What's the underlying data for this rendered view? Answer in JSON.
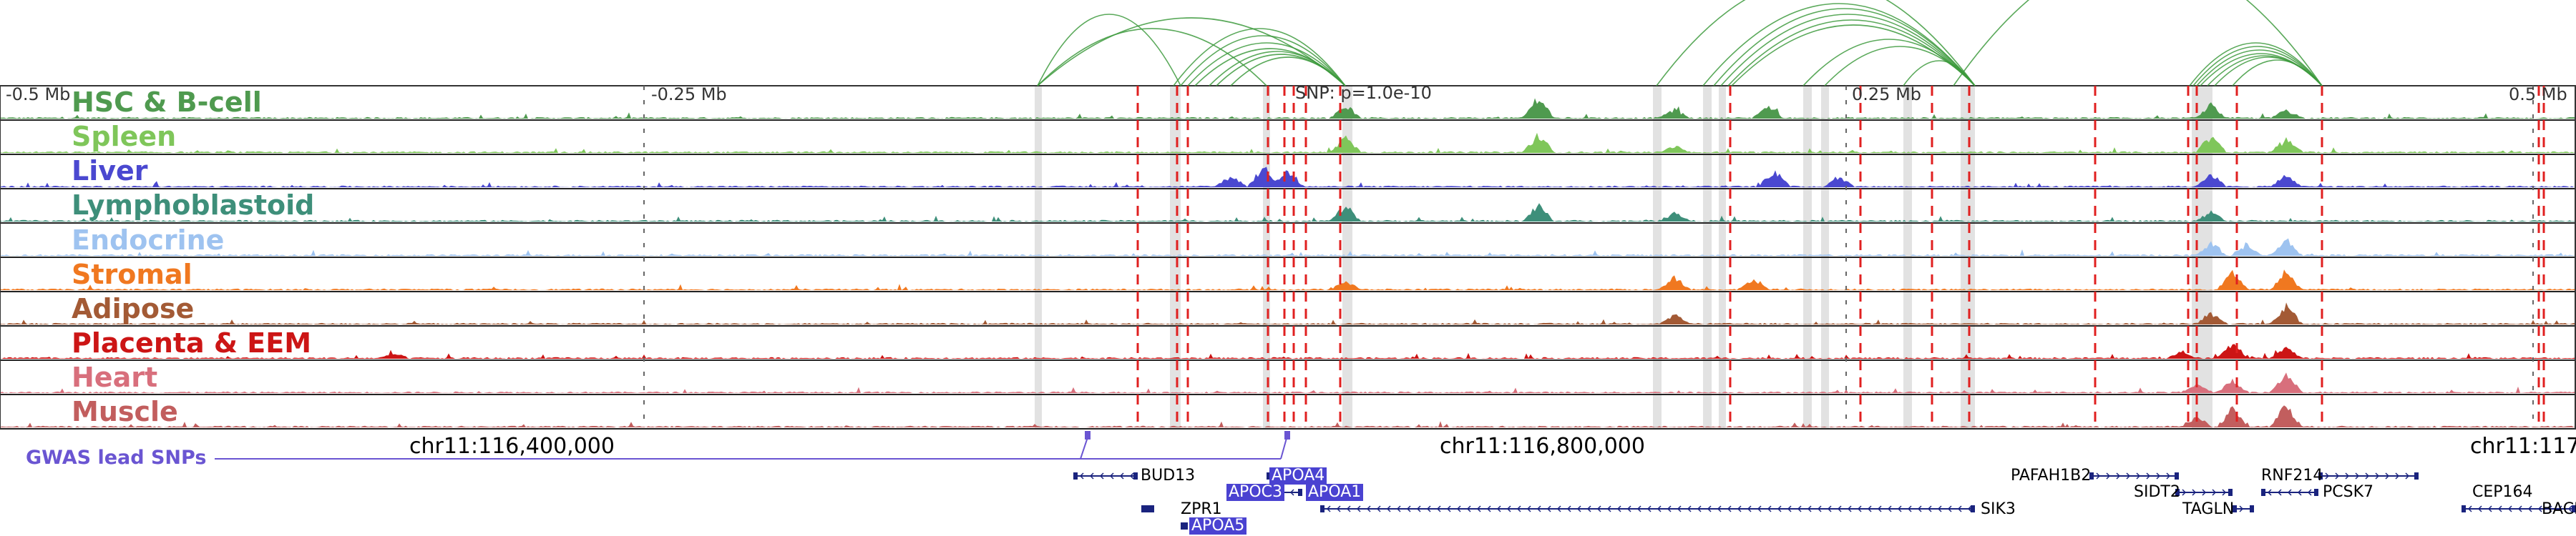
{
  "scale": {
    "left_label": "-0.5 Mb",
    "mid_left_label": "-0.25 Mb",
    "mid_right_label": "0.25 Mb",
    "right_label": "0.5 Mb",
    "snp_label": "SNP: p=1.0e-10"
  },
  "tracks": [
    {
      "name": "HSC & B-cell",
      "color": "#4f9a4f"
    },
    {
      "name": "Spleen",
      "color": "#7fc65a"
    },
    {
      "name": "Liver",
      "color": "#4a48d0"
    },
    {
      "name": "Lymphoblastoid",
      "color": "#3e8f7a"
    },
    {
      "name": "Endocrine",
      "color": "#9ec3f0"
    },
    {
      "name": "Stromal",
      "color": "#f07820"
    },
    {
      "name": "Adipose",
      "color": "#a35a35"
    },
    {
      "name": "Placenta & EEM",
      "color": "#cc1515"
    },
    {
      "name": "Heart",
      "color": "#d86f7c"
    },
    {
      "name": "Muscle",
      "color": "#c25e5e"
    }
  ],
  "coordinates": {
    "left": "chr11:116,400,000",
    "middle": "chr11:116,800,000",
    "right": "chr11:117"
  },
  "gwas": {
    "label": "GWAS lead SNPs",
    "color": "#6a55d2"
  },
  "genes": [
    {
      "name": "BUD13",
      "highlight": false
    },
    {
      "name": "APOA4",
      "highlight": true
    },
    {
      "name": "APOC3",
      "highlight": true
    },
    {
      "name": "APOA1",
      "highlight": true
    },
    {
      "name": "ZPR1",
      "highlight": false
    },
    {
      "name": "APOA5",
      "highlight": true
    },
    {
      "name": "SIK3",
      "highlight": false
    },
    {
      "name": "PAFAH1B2",
      "highlight": false
    },
    {
      "name": "SIDT2",
      "highlight": false
    },
    {
      "name": "TAGLN",
      "highlight": false
    },
    {
      "name": "RNF214",
      "highlight": false
    },
    {
      "name": "PCSK7",
      "highlight": false
    },
    {
      "name": "CEP164",
      "highlight": false
    },
    {
      "name": "BACE",
      "highlight": false
    }
  ],
  "colors": {
    "snp_line": "#e02020",
    "loop": "#3d9a3d",
    "gene": "#1a237e",
    "highlight_band": "#dddddd"
  }
}
